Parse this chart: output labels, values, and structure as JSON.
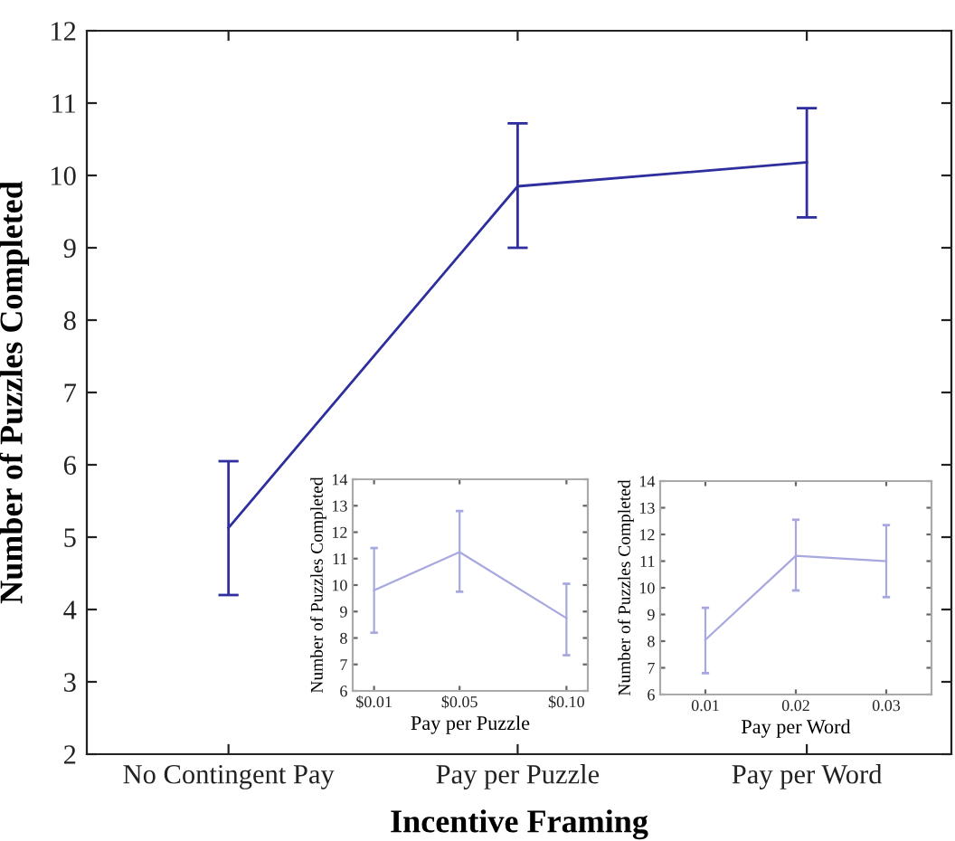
{
  "chart_data": [
    {
      "type": "line",
      "xlabel": "Incentive Framing",
      "ylabel": "Number of Puzzles Completed",
      "categories": [
        "No Contingent Pay",
        "Pay per Puzzle",
        "Pay per Word"
      ],
      "series": [
        {
          "color": "#2e2e9e",
          "values": [
            5.13,
            9.85,
            10.18
          ],
          "errors": [
            [
              4.2,
              6.05
            ],
            [
              9.0,
              10.72
            ],
            [
              9.42,
              10.93
            ]
          ]
        }
      ],
      "ylim": [
        2,
        12
      ],
      "yticks": [
        2,
        3,
        4,
        5,
        6,
        7,
        8,
        9,
        10,
        11,
        12
      ],
      "grid": false,
      "legend": false,
      "marker": "none",
      "line_style": "solid"
    },
    {
      "type": "line",
      "xlabel": "Pay per Puzzle",
      "ylabel": "Number of Puzzles Completed",
      "x": [
        0.01,
        0.05,
        0.1
      ],
      "series": [
        {
          "color": "#a8a8e0",
          "values": [
            9.8,
            11.25,
            8.75
          ],
          "errors": [
            [
              8.2,
              11.4
            ],
            [
              9.75,
              12.8
            ],
            [
              7.35,
              10.05
            ]
          ]
        }
      ],
      "xlim": [
        0,
        0.11
      ],
      "xticks": [
        {
          "value": 0.01,
          "label": "$0.01"
        },
        {
          "value": 0.05,
          "label": "$0.05"
        },
        {
          "value": 0.1,
          "label": "$0.10"
        }
      ],
      "ylim": [
        6,
        14
      ],
      "yticks": [
        6,
        7,
        8,
        9,
        10,
        11,
        12,
        13,
        14
      ],
      "grid": false,
      "legend": false,
      "marker": "none",
      "line_style": "solid"
    },
    {
      "type": "line",
      "xlabel": "Pay per Word",
      "ylabel": "Number of Puzzles Completed",
      "x": [
        0.01,
        0.02,
        0.03
      ],
      "series": [
        {
          "color": "#a8a8e0",
          "values": [
            8.05,
            11.2,
            11.0
          ],
          "errors": [
            [
              6.8,
              9.25
            ],
            [
              9.9,
              12.55
            ],
            [
              9.65,
              12.35
            ]
          ]
        }
      ],
      "xlim": [
        0.005,
        0.035
      ],
      "xticks": [
        {
          "value": 0.01,
          "label": "0.01"
        },
        {
          "value": 0.02,
          "label": "0.02"
        },
        {
          "value": 0.03,
          "label": "0.03"
        }
      ],
      "ylim": [
        6,
        14
      ],
      "yticks": [
        6,
        7,
        8,
        9,
        10,
        11,
        12,
        13,
        14
      ],
      "grid": false,
      "legend": false,
      "marker": "none",
      "line_style": "solid"
    }
  ]
}
